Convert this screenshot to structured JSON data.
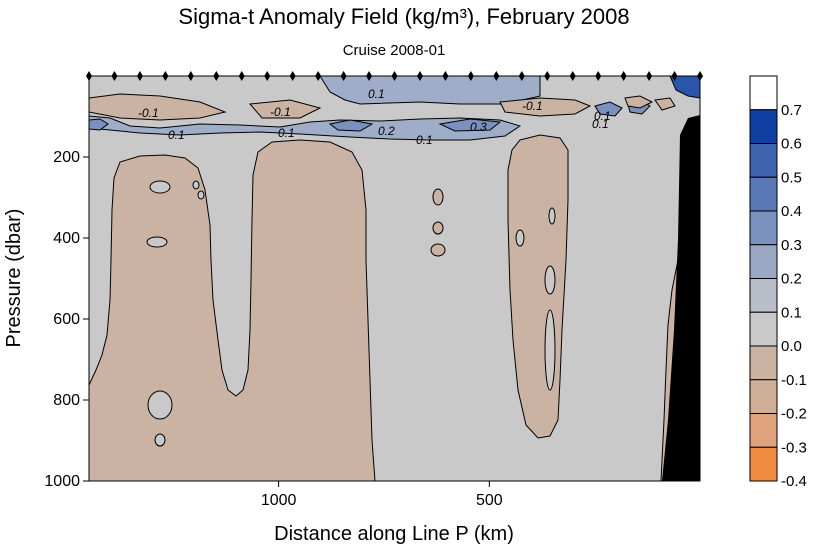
{
  "chart_data": {
    "type": "heatmap",
    "title": "Sigma-t Anomaly Field  (kg/m³),  February 2008",
    "subtitle": "Cruise 2008-01",
    "xlabel": "Distance along Line P  (km)",
    "ylabel": "Pressure  (dbar)",
    "x_ticks": [
      "1000",
      "500"
    ],
    "x_tick_values": [
      1000,
      500
    ],
    "xlim": [
      1450,
      0
    ],
    "y_ticks": [
      "200",
      "400",
      "600",
      "800",
      "1000"
    ],
    "y_tick_values": [
      200,
      400,
      600,
      800,
      1000
    ],
    "ylim": [
      0,
      1000
    ],
    "colorbar": {
      "levels": [
        "0.7",
        "0.6",
        "0.5",
        "0.4",
        "0.3",
        "0.2",
        "0.1",
        "0.0",
        "-0.1",
        "-0.2",
        "-0.3",
        "-0.4"
      ],
      "colors": [
        "#ffffff",
        "#0f3fa3",
        "#3d62ae",
        "#5a78b6",
        "#7a91bf",
        "#9aa8c6",
        "#b9bec9",
        "#c9c9c9",
        "#cbb3a3",
        "#cfb097",
        "#e0a37b",
        "#f08c41"
      ]
    },
    "contour_labels": [
      "-0.1",
      "0.1",
      "-0.1",
      "0.1",
      "0.2",
      "0.1",
      "0.3",
      "0.1",
      "-0.1",
      "0.1",
      "0.1"
    ],
    "background_anomaly": 0.0,
    "negative_anomaly": -0.1,
    "station_count": 25
  },
  "colors": {
    "neutral": "#c9c9c9",
    "negative": "#cbb3a3",
    "positive_light": "#9fadc8",
    "positive_mid": "#7a91bf",
    "positive_dark": "#2a55a8",
    "bathymetry": "#000000"
  }
}
